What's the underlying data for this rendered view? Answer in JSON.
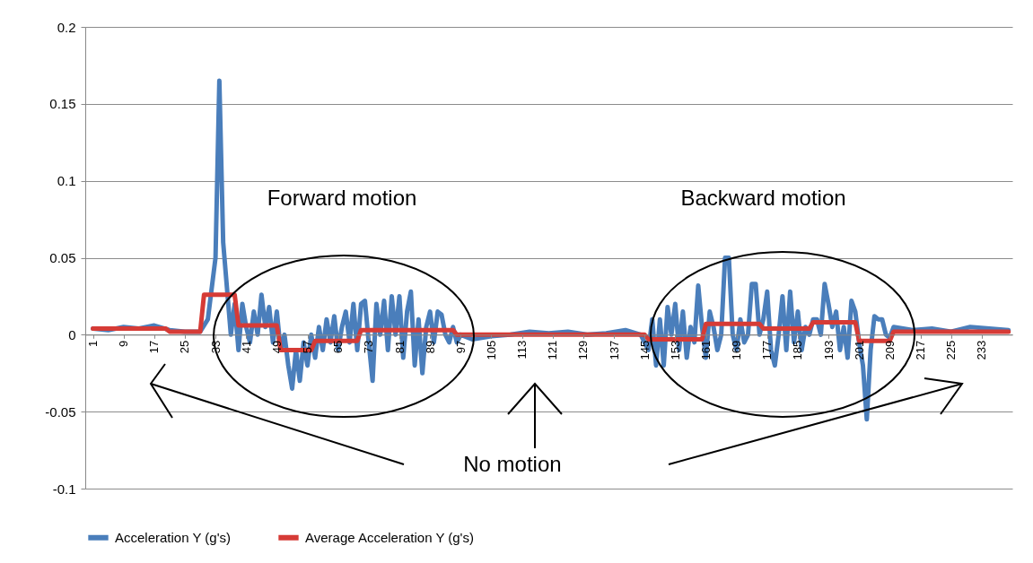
{
  "chart_data": {
    "type": "line",
    "xlim": [
      -1,
      241
    ],
    "xticks": [
      1,
      9,
      17,
      25,
      33,
      41,
      49,
      57,
      65,
      73,
      81,
      89,
      97,
      105,
      113,
      121,
      129,
      137,
      145,
      153,
      161,
      169,
      177,
      185,
      193,
      201,
      209,
      217,
      225,
      233
    ],
    "ylim": [
      -0.1,
      0.2
    ],
    "yticks": [
      -0.1,
      -0.05,
      0,
      0.05,
      0.1,
      0.15,
      0.2
    ],
    "grid": "y",
    "legend": "bottom",
    "annotations": [
      "Forward motion",
      "Backward motion",
      "No motion"
    ],
    "series": [
      {
        "name": "Acceleration Y (g's)",
        "color": "#4a7ebb",
        "x": [
          1,
          5,
          9,
          13,
          17,
          21,
          25,
          29,
          31,
          33,
          34,
          35,
          36,
          37,
          38,
          39,
          40,
          41,
          42,
          43,
          44,
          45,
          46,
          47,
          48,
          49,
          50,
          51,
          52,
          53,
          54,
          55,
          56,
          57,
          58,
          59,
          60,
          61,
          62,
          63,
          64,
          65,
          66,
          67,
          68,
          69,
          70,
          71,
          72,
          73,
          74,
          75,
          76,
          77,
          78,
          79,
          80,
          81,
          82,
          83,
          84,
          85,
          86,
          87,
          88,
          89,
          90,
          91,
          92,
          93,
          94,
          95,
          96,
          97,
          100,
          105,
          110,
          115,
          120,
          125,
          130,
          135,
          140,
          144,
          146,
          147,
          148,
          149,
          150,
          151,
          152,
          153,
          154,
          155,
          156,
          157,
          158,
          159,
          160,
          161,
          162,
          163,
          164,
          165,
          166,
          167,
          168,
          169,
          170,
          171,
          172,
          173,
          174,
          175,
          176,
          177,
          178,
          179,
          180,
          181,
          182,
          183,
          184,
          185,
          186,
          187,
          188,
          189,
          190,
          191,
          192,
          193,
          194,
          195,
          196,
          197,
          198,
          199,
          200,
          201,
          202,
          203,
          204,
          205,
          206,
          207,
          208,
          209,
          210,
          215,
          220,
          225,
          230,
          235,
          240
        ],
        "values": [
          0.004,
          0.003,
          0.005,
          0.004,
          0.006,
          0.003,
          0.002,
          0.002,
          0.01,
          0.05,
          0.165,
          0.06,
          0.03,
          0.0,
          0.02,
          -0.01,
          0.02,
          0.005,
          -0.005,
          0.015,
          0.0,
          0.026,
          0.005,
          0.018,
          -0.005,
          0.015,
          -0.01,
          0.0,
          -0.02,
          -0.035,
          -0.01,
          -0.03,
          -0.005,
          -0.02,
          0.0,
          -0.015,
          0.005,
          -0.01,
          0.01,
          -0.005,
          0.012,
          -0.01,
          0.005,
          0.015,
          -0.005,
          0.02,
          -0.01,
          0.02,
          0.022,
          -0.005,
          -0.03,
          0.02,
          0.0,
          0.022,
          -0.01,
          0.025,
          0.0,
          0.025,
          -0.015,
          0.015,
          0.028,
          -0.02,
          0.01,
          -0.025,
          0.005,
          0.015,
          -0.005,
          0.015,
          0.013,
          0.0,
          -0.005,
          0.005,
          -0.005,
          0.0,
          -0.003,
          -0.001,
          0.0,
          0.002,
          0.001,
          0.002,
          0.0,
          0.001,
          0.003,
          0.0,
          -0.01,
          0.01,
          -0.02,
          0.01,
          -0.02,
          0.018,
          0.0,
          0.02,
          -0.01,
          0.015,
          -0.015,
          0.005,
          -0.005,
          0.032,
          0.005,
          -0.015,
          0.015,
          0.005,
          -0.01,
          0.0,
          0.05,
          0.05,
          0.0,
          -0.01,
          0.01,
          -0.005,
          0.0,
          0.033,
          0.033,
          0.0,
          0.01,
          0.028,
          -0.01,
          -0.02,
          0.0,
          0.025,
          -0.01,
          0.028,
          -0.005,
          0.015,
          -0.01,
          0.005,
          0.0,
          0.01,
          0.01,
          0.0,
          0.033,
          0.02,
          0.005,
          0.015,
          -0.01,
          0.005,
          -0.015,
          0.022,
          0.015,
          -0.005,
          -0.02,
          -0.055,
          -0.01,
          0.012,
          0.01,
          0.01,
          0.0,
          -0.002,
          0.005,
          0.003,
          0.004,
          0.002,
          0.005,
          0.004,
          0.003
        ]
      },
      {
        "name": "Average Acceleration Y (g's)",
        "color": "#d63b36",
        "x": [
          1,
          20,
          21,
          29,
          30,
          38,
          39,
          49,
          50,
          58,
          59,
          70,
          71,
          95,
          96,
          145,
          146,
          160,
          161,
          175,
          176,
          188,
          189,
          200,
          201,
          209,
          210,
          240
        ],
        "values": [
          0.004,
          0.004,
          0.002,
          0.002,
          0.026,
          0.026,
          0.006,
          0.006,
          -0.01,
          -0.01,
          -0.004,
          -0.004,
          0.003,
          0.003,
          0.0,
          0.0,
          -0.003,
          -0.003,
          0.007,
          0.007,
          0.004,
          0.004,
          0.008,
          0.008,
          -0.004,
          -0.004,
          0.002,
          0.002
        ]
      }
    ]
  }
}
